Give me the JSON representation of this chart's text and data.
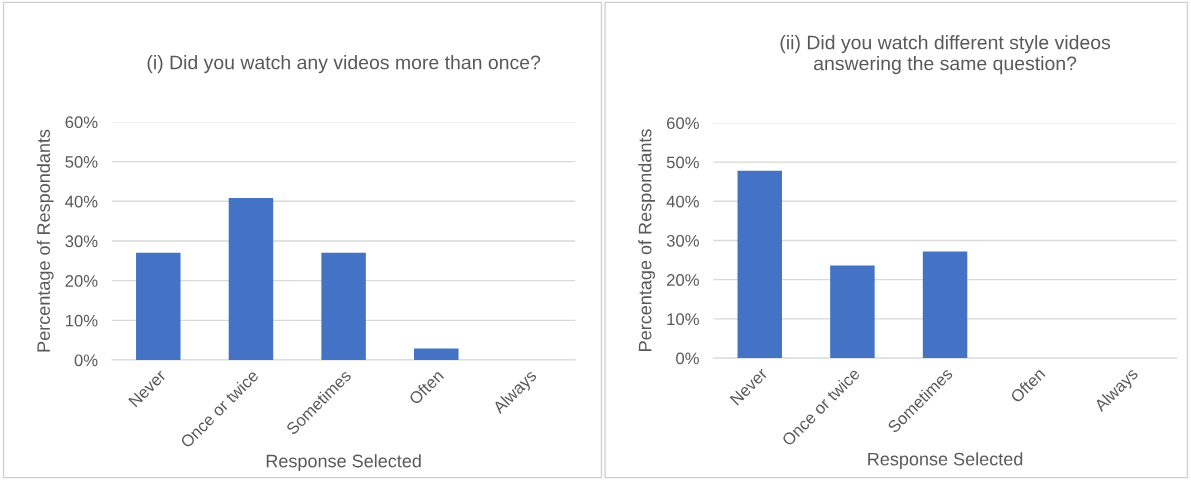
{
  "chart_data": [
    {
      "type": "bar",
      "title": "(i) Did you watch any videos more than once?",
      "xlabel": "Response Selected",
      "ylabel": "Percentage of Respondants",
      "categories": [
        "Never",
        "Once or twice",
        "Sometimes",
        "Often",
        "Always"
      ],
      "values": [
        27.0,
        40.8,
        27.0,
        2.9,
        0
      ],
      "color": "#4472c4",
      "ylim": [
        0,
        60
      ],
      "yticks": [
        {
          "value": 0,
          "label": "0%"
        },
        {
          "value": 10,
          "label": "10%"
        },
        {
          "value": 20,
          "label": "20%"
        },
        {
          "value": 30,
          "label": "30%"
        },
        {
          "value": 40,
          "label": "40%"
        },
        {
          "value": 50,
          "label": "50%"
        },
        {
          "value": 60,
          "label": "60%"
        }
      ],
      "grid": "y"
    },
    {
      "type": "bar",
      "title": "(ii) Did you watch different style videos\nanswering the same question?",
      "xlabel": "Response Selected",
      "ylabel": "Percentage of Respondants",
      "categories": [
        "Never",
        "Once or twice",
        "Sometimes",
        "Often",
        "Always"
      ],
      "values": [
        47.8,
        23.6,
        27.2,
        0,
        0
      ],
      "color": "#4472c4",
      "ylim": [
        0,
        60
      ],
      "yticks": [
        {
          "value": 0,
          "label": "0%"
        },
        {
          "value": 10,
          "label": "10%"
        },
        {
          "value": 20,
          "label": "20%"
        },
        {
          "value": 30,
          "label": "30%"
        },
        {
          "value": 40,
          "label": "40%"
        },
        {
          "value": 50,
          "label": "50%"
        },
        {
          "value": 60,
          "label": "60%"
        }
      ],
      "grid": "y"
    }
  ]
}
